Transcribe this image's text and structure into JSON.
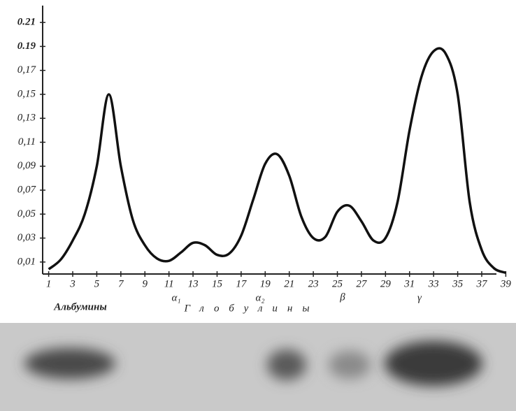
{
  "chart_data": {
    "type": "line",
    "x": [
      1,
      2,
      3,
      4,
      5,
      6,
      7,
      8,
      9,
      10,
      11,
      12,
      13,
      14,
      15,
      16,
      17,
      18,
      19,
      20,
      21,
      22,
      23,
      24,
      25,
      26,
      27,
      28,
      29,
      30,
      31,
      32,
      33,
      34,
      35,
      36,
      37,
      38,
      39
    ],
    "values": [
      0.004,
      0.012,
      0.028,
      0.05,
      0.09,
      0.15,
      0.09,
      0.045,
      0.024,
      0.013,
      0.011,
      0.018,
      0.026,
      0.024,
      0.016,
      0.017,
      0.032,
      0.062,
      0.092,
      0.1,
      0.082,
      0.048,
      0.03,
      0.031,
      0.052,
      0.057,
      0.044,
      0.028,
      0.03,
      0.06,
      0.12,
      0.165,
      0.186,
      0.184,
      0.15,
      0.06,
      0.02,
      0.005,
      0.001
    ],
    "color": "#111111",
    "xlim": [
      0.5,
      39.5
    ],
    "xticks": [
      1,
      3,
      5,
      7,
      9,
      11,
      13,
      15,
      17,
      19,
      21,
      23,
      25,
      27,
      29,
      31,
      33,
      35,
      37,
      39
    ],
    "ylim": [
      0,
      0.22
    ],
    "yticks": [
      {
        "value": 0.01,
        "label": "0,01"
      },
      {
        "value": 0.03,
        "label": "0,03"
      },
      {
        "value": 0.05,
        "label": "0,05"
      },
      {
        "value": 0.07,
        "label": "0,07"
      },
      {
        "value": 0.09,
        "label": "0,09"
      },
      {
        "value": 0.11,
        "label": "0,11"
      },
      {
        "value": 0.13,
        "label": "0,13"
      },
      {
        "value": 0.15,
        "label": "0,15"
      },
      {
        "value": 0.17,
        "label": "0,17"
      },
      {
        "value": 0.19,
        "label": "0.19"
      },
      {
        "value": 0.21,
        "label": "0.21"
      }
    ],
    "grid": false,
    "annotations": [
      "Альбумины",
      "Глобулины",
      "α₁",
      "α₂",
      "β",
      "γ"
    ]
  }
}
